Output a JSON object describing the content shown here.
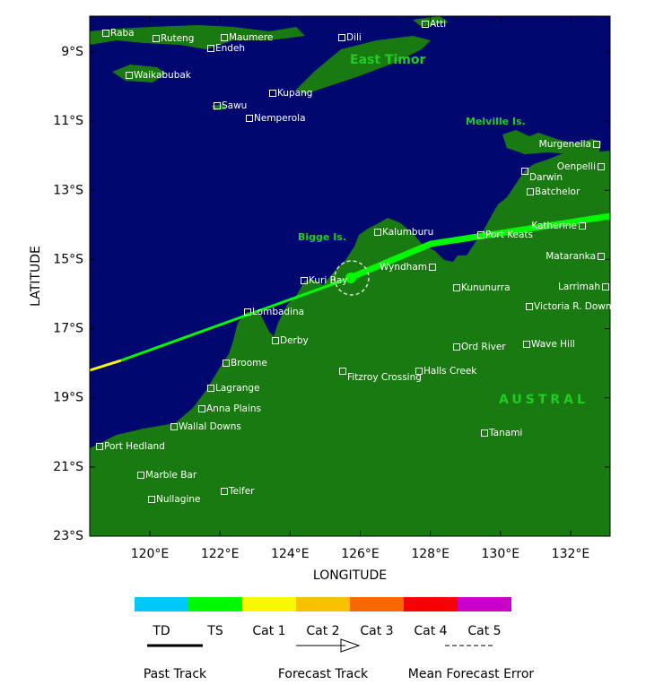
{
  "axes": {
    "x_label": "LONGITUDE",
    "y_label": "LATITUDE",
    "xticks": [
      {
        "value": 120,
        "label": "120°E"
      },
      {
        "value": 122,
        "label": "122°E"
      },
      {
        "value": 124,
        "label": "124°E"
      },
      {
        "value": 126,
        "label": "126°E"
      },
      {
        "value": 128,
        "label": "128°E"
      },
      {
        "value": 130,
        "label": "130°E"
      },
      {
        "value": 132,
        "label": "132°E"
      }
    ],
    "yticks": [
      {
        "value": 9,
        "label": "9°S"
      },
      {
        "value": 11,
        "label": "11°S"
      },
      {
        "value": 13,
        "label": "13°S"
      },
      {
        "value": 15,
        "label": "15°S"
      },
      {
        "value": 17,
        "label": "17°S"
      },
      {
        "value": 19,
        "label": "19°S"
      },
      {
        "value": 21,
        "label": "21°S"
      },
      {
        "value": 23,
        "label": "23°S"
      }
    ]
  },
  "regions": [
    "East Timor",
    "Melville Is.",
    "Bigge Is.",
    "AUSTRAL"
  ],
  "places": [
    "Raba",
    "Ruteng",
    "Maumere",
    "Endeh",
    "Dili",
    "Atti",
    "Waikabubak",
    "Kupang",
    "Sawu",
    "Nemperola",
    "Murgenella",
    "Oenpelli",
    "Darwin",
    "Batchelor",
    "Kalumburu",
    "Port Keats",
    "Katherine",
    "Mataranka",
    "Larrimah",
    "Kuri Bay",
    "Wyndham",
    "Kununurra",
    "Victoria R. Downs",
    "Lombadina",
    "Derby",
    "Broome",
    "Ord River",
    "Wave Hill",
    "Halls Creek",
    "Fitzroy Crossing",
    "Lagrange",
    "Anna Plains",
    "Wallal Downs",
    "Tanami",
    "Port Hedland",
    "Marble Bar",
    "Telfer",
    "Nullagine"
  ],
  "legend": {
    "categories": [
      {
        "name": "TD",
        "color": "#00c8f8"
      },
      {
        "name": "TS",
        "color": "#00f800"
      },
      {
        "name": "Cat 1",
        "color": "#f8f800"
      },
      {
        "name": "Cat 2",
        "color": "#f8c000"
      },
      {
        "name": "Cat 3",
        "color": "#f86800"
      },
      {
        "name": "Cat 4",
        "color": "#f80000"
      },
      {
        "name": "Cat 5",
        "color": "#c800c8"
      }
    ],
    "tracks": [
      "Past Track",
      "Forecast Track",
      "Mean Forecast Error"
    ]
  }
}
